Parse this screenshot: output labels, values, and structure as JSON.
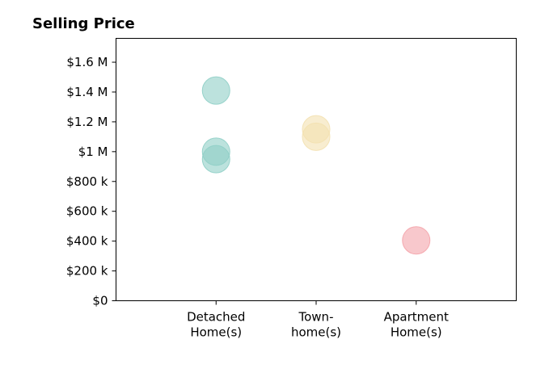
{
  "chart_data": {
    "type": "scatter",
    "title": "Selling Price",
    "xlabel": "",
    "ylabel": "",
    "categories": [
      [
        "Detached",
        "Home(s)"
      ],
      [
        "Town-",
        "home(s)"
      ],
      [
        "Apartment",
        "Home(s)"
      ]
    ],
    "x_positions": [
      1,
      2,
      3
    ],
    "xlim": [
      0,
      4
    ],
    "ylim": [
      0,
      1760000
    ],
    "yticks": [
      0,
      200000,
      400000,
      600000,
      800000,
      1000000,
      1200000,
      1400000,
      1600000
    ],
    "ytick_labels": [
      "$0",
      "$200 k",
      "$400 k",
      "$600 k",
      "$800 k",
      "$1 M",
      "$1.2 M",
      "$1.4 M",
      "$1.6 M"
    ],
    "grid": false,
    "legend": "none",
    "series": [
      {
        "category": "Detached Home(s)",
        "color": "#8fcfc6",
        "points": [
          {
            "x": 1,
            "y": 1410000
          },
          {
            "x": 1,
            "y": 1000000
          },
          {
            "x": 1,
            "y": 950000
          }
        ]
      },
      {
        "category": "Town-home(s)",
        "color": "#f3e1b0",
        "points": [
          {
            "x": 2,
            "y": 1150000
          },
          {
            "x": 2,
            "y": 1100000
          }
        ]
      },
      {
        "category": "Apartment Home(s)",
        "color": "#f4a3aa",
        "points": [
          {
            "x": 3,
            "y": 405000
          }
        ]
      }
    ]
  }
}
